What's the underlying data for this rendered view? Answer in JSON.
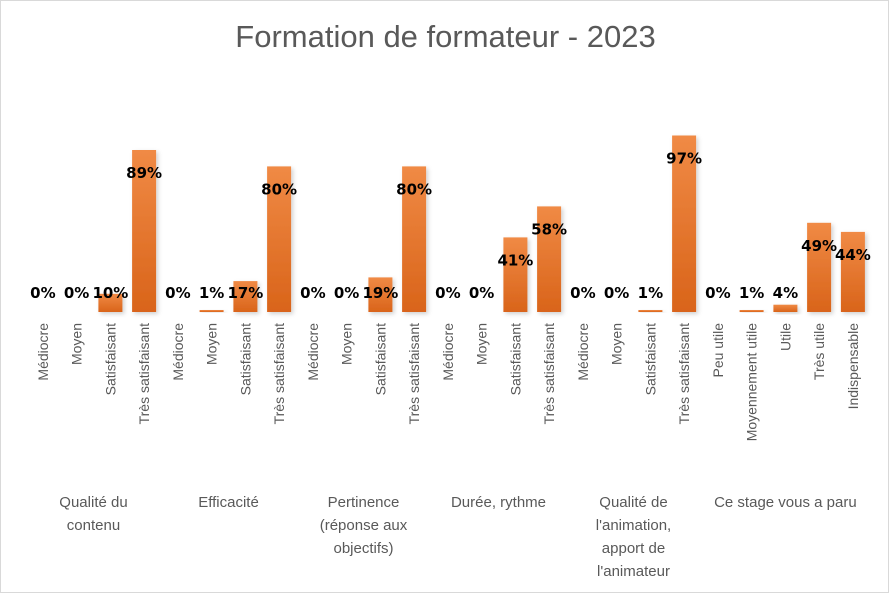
{
  "chart_data": {
    "type": "bar",
    "title": "Formation de formateur - 2023",
    "xlabel": "",
    "ylabel": "",
    "ylim": [
      0,
      100
    ],
    "grid": false,
    "legend": "none",
    "colors": {
      "bar": "#ED7D31",
      "bar_top": "#F08A45",
      "bar_bottom": "#D9641A",
      "text": "#595959",
      "labels": "#000000"
    },
    "groups": [
      {
        "name_lines": [
          "Qualité du",
          "contenu"
        ],
        "categories": [
          "Médiocre",
          "Moyen",
          "Satisfaisant",
          "Très satisfaisant"
        ],
        "values": [
          0,
          0,
          10,
          89
        ],
        "labels": [
          "0%",
          "0%",
          "10%",
          "89%"
        ]
      },
      {
        "name_lines": [
          "Efficacité"
        ],
        "categories": [
          "Médiocre",
          "Moyen",
          "Satisfaisant",
          "Très satisfaisant"
        ],
        "values": [
          0,
          1,
          17,
          80
        ],
        "labels": [
          "0%",
          "1%",
          "17%",
          "80%"
        ]
      },
      {
        "name_lines": [
          "Pertinence",
          "(réponse aux",
          "objectifs)"
        ],
        "categories": [
          "Médiocre",
          "Moyen",
          "Satisfaisant",
          "Très satisfaisant"
        ],
        "values": [
          0,
          0,
          19,
          80
        ],
        "labels": [
          "0%",
          "0%",
          "19%",
          "80%"
        ]
      },
      {
        "name_lines": [
          "Durée, rythme"
        ],
        "categories": [
          "Médiocre",
          "Moyen",
          "Satisfaisant",
          "Très satisfaisant"
        ],
        "values": [
          0,
          0,
          41,
          58
        ],
        "labels": [
          "0%",
          "0%",
          "41%",
          "58%"
        ]
      },
      {
        "name_lines": [
          "Qualité de",
          "l'animation,",
          "apport de",
          "l'animateur"
        ],
        "categories": [
          "Médiocre",
          "Moyen",
          "Satisfaisant",
          "Très satisfaisant"
        ],
        "values": [
          0,
          0,
          1,
          97
        ],
        "labels": [
          "0%",
          "0%",
          "1%",
          "97%"
        ]
      },
      {
        "name_lines": [
          "Ce stage vous a paru"
        ],
        "categories": [
          "Peu utile",
          "Moyennement utile",
          "Utile",
          "Très utile",
          "Indispensable"
        ],
        "values": [
          0,
          1,
          4,
          49,
          44
        ],
        "labels": [
          "0%",
          "1%",
          "4%",
          "49%",
          "44%"
        ]
      }
    ]
  }
}
